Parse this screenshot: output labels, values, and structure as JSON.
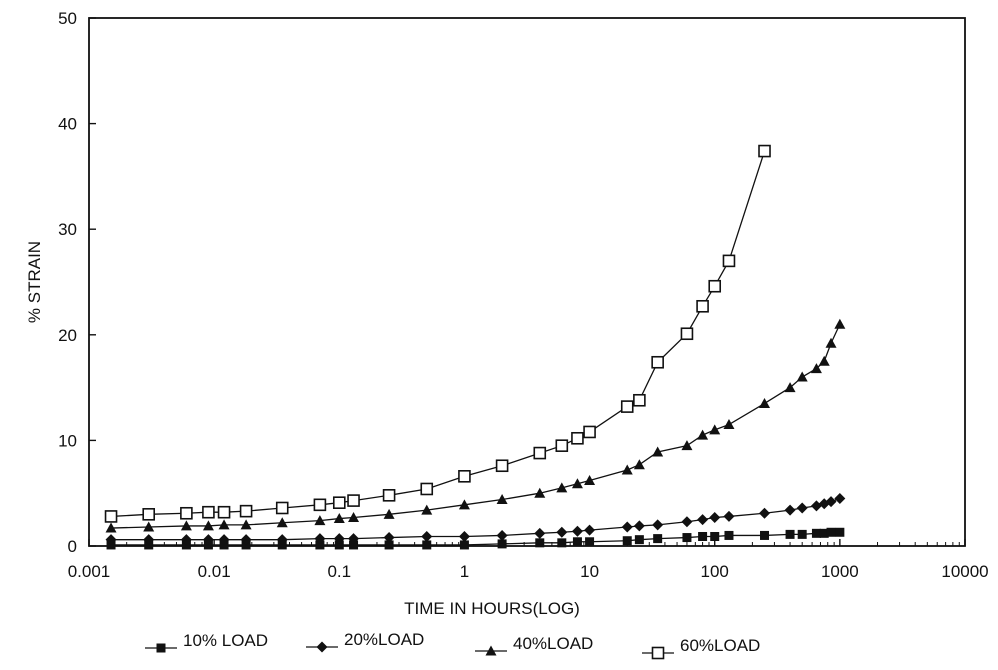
{
  "chart_data": {
    "type": "line",
    "xlabel": "TIME IN HOURS(LOG)",
    "ylabel": "% STRAIN",
    "xscale": "log",
    "xlim": [
      0.001,
      10000
    ],
    "ylim": [
      0,
      50
    ],
    "x_ticks": [
      "0.001",
      "0.01",
      "0.1",
      "1",
      "10",
      "100",
      "1000",
      "10000"
    ],
    "y_ticks": [
      "0",
      "10",
      "20",
      "30",
      "40",
      "50"
    ],
    "grid": false,
    "legend_position": "bottom",
    "series": [
      {
        "name": "10% LOAD",
        "marker": "square-filled",
        "color": "#111111",
        "points": [
          [
            0.0015,
            0.1
          ],
          [
            0.003,
            0.1
          ],
          [
            0.006,
            0.1
          ],
          [
            0.009,
            0.1
          ],
          [
            0.012,
            0.1
          ],
          [
            0.018,
            0.1
          ],
          [
            0.035,
            0.1
          ],
          [
            0.07,
            0.1
          ],
          [
            0.1,
            0.1
          ],
          [
            0.13,
            0.1
          ],
          [
            0.25,
            0.1
          ],
          [
            0.5,
            0.1
          ],
          [
            1,
            0.1
          ],
          [
            2,
            0.2
          ],
          [
            4,
            0.3
          ],
          [
            6,
            0.3
          ],
          [
            8,
            0.4
          ],
          [
            10,
            0.4
          ],
          [
            20,
            0.5
          ],
          [
            25,
            0.6
          ],
          [
            35,
            0.7
          ],
          [
            60,
            0.8
          ],
          [
            80,
            0.9
          ],
          [
            100,
            0.9
          ],
          [
            130,
            1.0
          ],
          [
            250,
            1.0
          ],
          [
            400,
            1.1
          ],
          [
            500,
            1.1
          ],
          [
            650,
            1.2
          ],
          [
            750,
            1.2
          ],
          [
            850,
            1.3
          ],
          [
            1000,
            1.3
          ]
        ]
      },
      {
        "name": "20%LOAD",
        "marker": "diamond-filled",
        "color": "#111111",
        "points": [
          [
            0.0015,
            0.6
          ],
          [
            0.003,
            0.6
          ],
          [
            0.006,
            0.6
          ],
          [
            0.009,
            0.6
          ],
          [
            0.012,
            0.6
          ],
          [
            0.018,
            0.6
          ],
          [
            0.035,
            0.6
          ],
          [
            0.07,
            0.7
          ],
          [
            0.1,
            0.7
          ],
          [
            0.13,
            0.7
          ],
          [
            0.25,
            0.8
          ],
          [
            0.5,
            0.9
          ],
          [
            1,
            0.9
          ],
          [
            2,
            1.0
          ],
          [
            4,
            1.2
          ],
          [
            6,
            1.3
          ],
          [
            8,
            1.4
          ],
          [
            10,
            1.5
          ],
          [
            20,
            1.8
          ],
          [
            25,
            1.9
          ],
          [
            35,
            2.0
          ],
          [
            60,
            2.3
          ],
          [
            80,
            2.5
          ],
          [
            100,
            2.7
          ],
          [
            130,
            2.8
          ],
          [
            250,
            3.1
          ],
          [
            400,
            3.4
          ],
          [
            500,
            3.6
          ],
          [
            650,
            3.8
          ],
          [
            750,
            4.0
          ],
          [
            850,
            4.2
          ],
          [
            1000,
            4.5
          ]
        ]
      },
      {
        "name": "40%LOAD",
        "marker": "triangle-filled",
        "color": "#111111",
        "points": [
          [
            0.0015,
            1.7
          ],
          [
            0.003,
            1.8
          ],
          [
            0.006,
            1.9
          ],
          [
            0.009,
            1.9
          ],
          [
            0.012,
            2.0
          ],
          [
            0.018,
            2.0
          ],
          [
            0.035,
            2.2
          ],
          [
            0.07,
            2.4
          ],
          [
            0.1,
            2.6
          ],
          [
            0.13,
            2.7
          ],
          [
            0.25,
            3.0
          ],
          [
            0.5,
            3.4
          ],
          [
            1,
            3.9
          ],
          [
            2,
            4.4
          ],
          [
            4,
            5.0
          ],
          [
            6,
            5.5
          ],
          [
            8,
            5.9
          ],
          [
            10,
            6.2
          ],
          [
            20,
            7.2
          ],
          [
            25,
            7.7
          ],
          [
            35,
            8.9
          ],
          [
            60,
            9.5
          ],
          [
            80,
            10.5
          ],
          [
            100,
            11.0
          ],
          [
            130,
            11.5
          ],
          [
            250,
            13.5
          ],
          [
            400,
            15.0
          ],
          [
            500,
            16.0
          ],
          [
            650,
            16.8
          ],
          [
            750,
            17.5
          ],
          [
            850,
            19.2
          ],
          [
            1000,
            21.0
          ]
        ]
      },
      {
        "name": "60%LOAD",
        "marker": "square-open",
        "color": "#111111",
        "points": [
          [
            0.0015,
            2.8
          ],
          [
            0.003,
            3.0
          ],
          [
            0.006,
            3.1
          ],
          [
            0.009,
            3.2
          ],
          [
            0.012,
            3.2
          ],
          [
            0.018,
            3.3
          ],
          [
            0.035,
            3.6
          ],
          [
            0.07,
            3.9
          ],
          [
            0.1,
            4.1
          ],
          [
            0.13,
            4.3
          ],
          [
            0.25,
            4.8
          ],
          [
            0.5,
            5.4
          ],
          [
            1,
            6.6
          ],
          [
            2,
            7.6
          ],
          [
            4,
            8.8
          ],
          [
            6,
            9.5
          ],
          [
            8,
            10.2
          ],
          [
            10,
            10.8
          ],
          [
            20,
            13.2
          ],
          [
            25,
            13.8
          ],
          [
            35,
            17.4
          ],
          [
            60,
            20.1
          ],
          [
            80,
            22.7
          ],
          [
            100,
            24.6
          ],
          [
            130,
            27.0
          ],
          [
            250,
            37.4
          ]
        ]
      }
    ]
  }
}
